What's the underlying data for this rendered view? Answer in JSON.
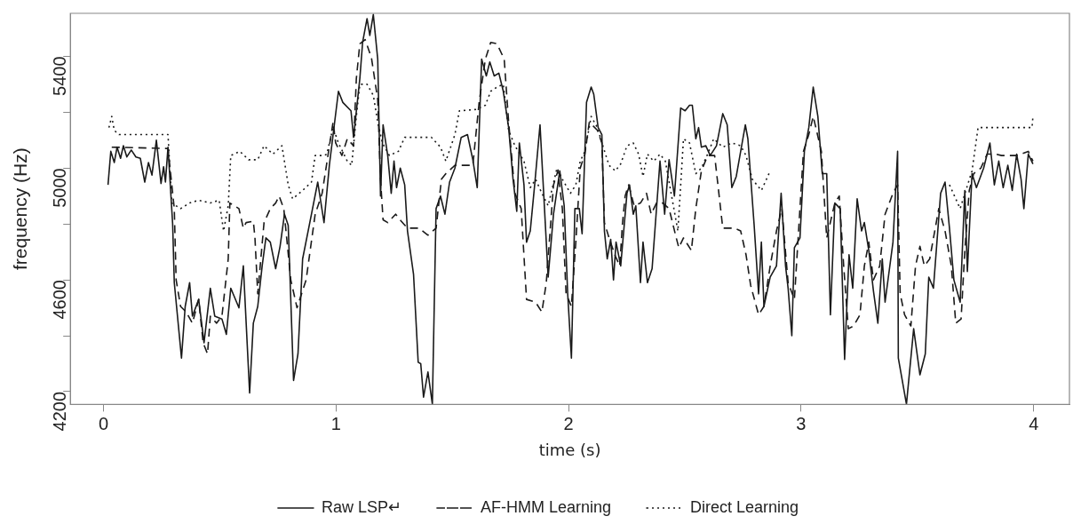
{
  "chart_data": {
    "type": "line",
    "xlabel": "time (s)",
    "ylabel": "frequency (Hz)",
    "xlim": [
      -0.143,
      4.154
    ],
    "xticks": [
      0,
      1,
      2,
      3,
      4
    ],
    "ylim": [
      4154,
      5554
    ],
    "yticks": [
      {
        "value": 4200,
        "label": "4200"
      },
      {
        "value": 4400,
        "label": null
      },
      {
        "value": 4600,
        "label": "4600"
      },
      {
        "value": 4800,
        "label": null
      },
      {
        "value": 5000,
        "label": "5000"
      },
      {
        "value": 5200,
        "label": null
      },
      {
        "value": 5400,
        "label": "5400"
      }
    ],
    "grid": false,
    "legend": "bottom",
    "marker": "none",
    "series": [
      {
        "name": "Raw LSP↵",
        "color": "#1a1a1a",
        "line_style": "solid",
        "x": [
          0.019,
          0.031,
          0.046,
          0.058,
          0.073,
          0.085,
          0.1,
          0.119,
          0.139,
          0.158,
          0.177,
          0.193,
          0.208,
          0.227,
          0.247,
          0.258,
          0.266,
          0.277,
          0.297,
          0.304,
          0.335,
          0.351,
          0.37,
          0.382,
          0.409,
          0.432,
          0.459,
          0.478,
          0.509,
          0.528,
          0.547,
          0.582,
          0.601,
          0.628,
          0.644,
          0.663,
          0.682,
          0.698,
          0.717,
          0.74,
          0.759,
          0.778,
          0.794,
          0.817,
          0.836,
          0.856,
          0.894,
          0.921,
          0.948,
          0.971,
          1.01,
          1.029,
          1.064,
          1.075,
          1.102,
          1.114,
          1.133,
          1.145,
          1.16,
          1.179,
          1.191,
          1.202,
          1.222,
          1.237,
          1.249,
          1.26,
          1.276,
          1.295,
          1.307,
          1.333,
          1.353,
          1.364,
          1.376,
          1.395,
          1.414,
          1.43,
          1.449,
          1.468,
          1.488,
          1.511,
          1.538,
          1.565,
          1.588,
          1.607,
          1.626,
          1.646,
          1.661,
          1.68,
          1.7,
          1.719,
          1.742,
          1.761,
          1.777,
          1.788,
          1.808,
          1.819,
          1.835,
          1.854,
          1.877,
          1.912,
          1.935,
          1.962,
          1.981,
          1.996,
          2.012,
          2.027,
          2.046,
          2.058,
          2.077,
          2.097,
          2.108,
          2.127,
          2.143,
          2.154,
          2.166,
          2.181,
          2.193,
          2.204,
          2.224,
          2.251,
          2.262,
          2.278,
          2.289,
          2.309,
          2.32,
          2.339,
          2.359,
          2.393,
          2.413,
          2.432,
          2.455,
          2.482,
          2.501,
          2.52,
          2.532,
          2.547,
          2.559,
          2.571,
          2.59,
          2.609,
          2.636,
          2.663,
          2.682,
          2.702,
          2.721,
          2.76,
          2.771,
          2.798,
          2.817,
          2.829,
          2.84,
          2.867,
          2.894,
          2.914,
          2.933,
          2.944,
          2.96,
          2.971,
          2.995,
          3.014,
          3.033,
          3.052,
          3.072,
          3.091,
          3.11,
          3.126,
          3.145,
          3.168,
          3.187,
          3.206,
          3.222,
          3.241,
          3.26,
          3.272,
          3.291,
          3.311,
          3.33,
          3.349,
          3.361,
          3.395,
          3.415,
          3.418,
          3.453,
          3.484,
          3.511,
          3.534,
          3.549,
          3.569,
          3.6,
          3.619,
          3.638,
          3.657,
          3.684,
          3.704,
          3.715,
          3.735,
          3.754,
          3.785,
          3.812,
          3.831,
          3.85,
          3.869,
          3.889,
          3.908,
          3.927,
          3.946,
          3.958,
          3.977,
          3.997
        ],
        "values": [
          4940,
          5060,
          5020,
          5075,
          5035,
          5080,
          5040,
          5065,
          5040,
          5035,
          4950,
          5020,
          4975,
          5100,
          4945,
          5005,
          4950,
          5075,
          4800,
          4590,
          4320,
          4505,
          4590,
          4470,
          4530,
          4375,
          4570,
          4470,
          4460,
          4405,
          4570,
          4500,
          4650,
          4195,
          4445,
          4505,
          4650,
          4750,
          4735,
          4640,
          4720,
          4835,
          4795,
          4240,
          4335,
          4675,
          4835,
          4950,
          4805,
          5010,
          5275,
          5235,
          5205,
          5110,
          5320,
          5450,
          5535,
          5475,
          5550,
          5390,
          4900,
          5155,
          5045,
          4910,
          5025,
          4930,
          5000,
          4940,
          4775,
          4620,
          4305,
          4300,
          4180,
          4270,
          4155,
          4855,
          4900,
          4835,
          4950,
          5000,
          5110,
          5120,
          5030,
          4930,
          5390,
          5330,
          5380,
          5330,
          5340,
          5275,
          5145,
          4960,
          4845,
          5090,
          4940,
          4735,
          4775,
          4940,
          5155,
          4610,
          4835,
          4990,
          4865,
          4550,
          4320,
          4855,
          4855,
          4765,
          5235,
          5290,
          5265,
          5145,
          5120,
          4775,
          4675,
          4745,
          4600,
          4735,
          4650,
          4910,
          4940,
          4835,
          4865,
          4590,
          4735,
          4590,
          4640,
          5025,
          4835,
          5030,
          4900,
          5215,
          5205,
          5225,
          5225,
          5105,
          5145,
          5075,
          5080,
          5045,
          5080,
          5195,
          5155,
          4930,
          4970,
          5155,
          5105,
          4795,
          4550,
          4735,
          4505,
          4610,
          4650,
          4910,
          4650,
          4570,
          4400,
          4715,
          4750,
          5060,
          5145,
          5290,
          5185,
          4980,
          4980,
          4475,
          4875,
          4855,
          4315,
          4690,
          4570,
          4890,
          4775,
          4805,
          4705,
          4560,
          4445,
          4675,
          4520,
          4735,
          5060,
          4320,
          4155,
          4425,
          4260,
          4335,
          4610,
          4570,
          4910,
          4950,
          4785,
          4600,
          4520,
          4920,
          4630,
          4980,
          4930,
          5000,
          5090,
          4940,
          5025,
          4930,
          5010,
          4920,
          5050,
          4960,
          4855,
          5050,
          5015
        ]
      },
      {
        "name": "AF-HMM Learning",
        "color": "#1a1a1a",
        "line_style": "dashed",
        "x": [
          0.035,
          0.277,
          0.304,
          0.312,
          0.331,
          0.355,
          0.382,
          0.409,
          0.428,
          0.447,
          0.459,
          0.486,
          0.509,
          0.536,
          0.543,
          0.582,
          0.601,
          0.613,
          0.644,
          0.651,
          0.663,
          0.69,
          0.717,
          0.74,
          0.755,
          0.775,
          0.805,
          0.832,
          0.871,
          0.91,
          0.94,
          0.987,
          0.998,
          1.025,
          1.048,
          1.075,
          1.087,
          1.102,
          1.125,
          1.152,
          1.179,
          1.191,
          1.202,
          1.222,
          1.256,
          1.28,
          1.307,
          1.357,
          1.395,
          1.43,
          1.453,
          1.472,
          1.511,
          1.588,
          1.615,
          1.642,
          1.665,
          1.692,
          1.723,
          1.742,
          1.769,
          1.796,
          1.819,
          1.858,
          1.885,
          1.904,
          1.935,
          1.954,
          1.973,
          1.989,
          2.012,
          2.031,
          2.05,
          2.07,
          2.089,
          2.124,
          2.143,
          2.154,
          2.174,
          2.201,
          2.22,
          2.231,
          2.243,
          2.258,
          2.282,
          2.309,
          2.335,
          2.355,
          2.378,
          2.405,
          2.432,
          2.463,
          2.474,
          2.494,
          2.528,
          2.547,
          2.571,
          2.598,
          2.628,
          2.663,
          2.713,
          2.74,
          2.763,
          2.783,
          2.817,
          2.84,
          2.867,
          2.894,
          2.917,
          2.944,
          2.971,
          3.01,
          3.033,
          3.052,
          3.087,
          3.11,
          3.145,
          3.164,
          3.183,
          3.203,
          3.226,
          3.253,
          3.272,
          3.291,
          3.311,
          3.338,
          3.361,
          3.395,
          3.415,
          3.426,
          3.445,
          3.472,
          3.492,
          3.511,
          3.53,
          3.553,
          3.592,
          3.619,
          3.646,
          3.665,
          3.688,
          3.704,
          3.723,
          3.742,
          3.773,
          3.8,
          3.839,
          3.862,
          3.927,
          3.977,
          3.997
        ],
        "values": [
          5075,
          5070,
          4855,
          4600,
          4505,
          4485,
          4445,
          4530,
          4375,
          4335,
          4470,
          4445,
          4470,
          4675,
          4875,
          4855,
          4785,
          4805,
          4810,
          4750,
          4550,
          4805,
          4855,
          4875,
          4900,
          4855,
          4600,
          4500,
          4600,
          4835,
          4910,
          5165,
          5090,
          5045,
          5105,
          5080,
          5320,
          5445,
          5460,
          5395,
          5245,
          4960,
          4815,
          4805,
          4835,
          4810,
          4785,
          4785,
          4760,
          4785,
          4960,
          4980,
          5010,
          5010,
          5235,
          5390,
          5450,
          5445,
          5390,
          5165,
          4910,
          4855,
          4530,
          4520,
          4485,
          4590,
          4940,
          4990,
          4855,
          4550,
          4505,
          4735,
          5000,
          5050,
          5165,
          5135,
          5090,
          4805,
          4750,
          4685,
          4650,
          4795,
          4900,
          4940,
          4865,
          4875,
          4910,
          4835,
          4875,
          4875,
          4855,
          4750,
          4715,
          4750,
          4705,
          4855,
          4990,
          5045,
          5045,
          4785,
          4785,
          4775,
          4690,
          4580,
          4475,
          4505,
          4650,
          4775,
          4855,
          4590,
          4530,
          5060,
          5120,
          5185,
          5060,
          4750,
          4875,
          4900,
          4650,
          4425,
          4435,
          4475,
          4650,
          4735,
          4600,
          4650,
          4835,
          4910,
          4940,
          4550,
          4475,
          4435,
          4650,
          4720,
          4650,
          4675,
          4855,
          4775,
          4650,
          4445,
          4460,
          4705,
          4920,
          4980,
          5000,
          5050,
          5050,
          5045,
          5045,
          5060,
          5025
        ]
      },
      {
        "name": "Direct Learning",
        "color": "#1a1a1a",
        "line_style": "dotted",
        "x": [
          0.023,
          0.035,
          0.046,
          0.066,
          0.277,
          0.293,
          0.331,
          0.37,
          0.409,
          0.459,
          0.497,
          0.516,
          0.536,
          0.547,
          0.586,
          0.624,
          0.663,
          0.69,
          0.728,
          0.767,
          0.794,
          0.813,
          0.856,
          0.894,
          0.91,
          0.948,
          0.96,
          0.987,
          1.01,
          1.048,
          1.067,
          1.087,
          1.102,
          1.133,
          1.16,
          1.179,
          1.199,
          1.229,
          1.268,
          1.295,
          1.41,
          1.449,
          1.472,
          1.511,
          1.53,
          1.603,
          1.642,
          1.665,
          1.692,
          1.719,
          1.742,
          1.769,
          1.808,
          1.835,
          1.858,
          1.885,
          1.912,
          1.95,
          1.973,
          2.008,
          2.031,
          2.05,
          2.07,
          2.097,
          2.124,
          2.147,
          2.174,
          2.201,
          2.224,
          2.251,
          2.278,
          2.301,
          2.32,
          2.339,
          2.366,
          2.393,
          2.416,
          2.443,
          2.47,
          2.494,
          2.52,
          2.547,
          2.571,
          2.598,
          2.624,
          2.663,
          2.702,
          2.74,
          2.763,
          2.79,
          2.829,
          2.867,
          3.0,
          3.638,
          3.684,
          3.735,
          3.761,
          3.993,
          3.997
        ],
        "values": [
          5145,
          5185,
          5135,
          5120,
          5120,
          4875,
          4855,
          4875,
          4885,
          4875,
          4885,
          4775,
          4865,
          5045,
          5060,
          5030,
          5030,
          5080,
          5050,
          5080,
          4940,
          4890,
          4920,
          4950,
          5045,
          5045,
          5050,
          5145,
          5090,
          5025,
          5010,
          5185,
          5300,
          5300,
          5260,
          5165,
          5090,
          5045,
          5060,
          5110,
          5110,
          5075,
          5025,
          5120,
          5205,
          5210,
          5225,
          5275,
          5290,
          5300,
          5135,
          5080,
          5025,
          4930,
          4960,
          4910,
          4865,
          5000,
          4960,
          4910,
          4940,
          5025,
          5060,
          5185,
          5145,
          5080,
          5010,
          4990,
          5015,
          5080,
          5090,
          5050,
          4970,
          5050,
          5025,
          5050,
          5025,
          4900,
          4775,
          5105,
          5090,
          4980,
          5000,
          5050,
          5105,
          5075,
          5090,
          5080,
          5045,
          4960,
          4920,
          4990,
          null,
          4940,
          4855,
          4990,
          5145,
          5145,
          5185
        ]
      }
    ]
  }
}
